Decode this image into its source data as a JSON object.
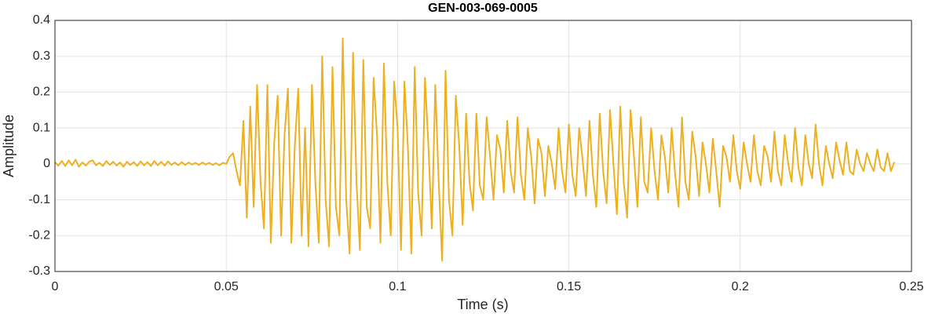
{
  "chart_data": {
    "type": "line",
    "title": "GEN-003-069-0005",
    "x_label": "Time (s)",
    "y_label": "Amplitude",
    "xlim": [
      0,
      0.25
    ],
    "xticks": [
      0,
      0.05,
      0.1,
      0.15,
      0.2,
      0.25
    ],
    "ylim": [
      -0.3,
      0.4
    ],
    "yticks": [
      -0.3,
      -0.2,
      -0.1,
      0,
      0.1,
      0.2,
      0.3,
      0.4
    ],
    "grid": true,
    "x": [
      0,
      0.001,
      0.002,
      0.003,
      0.004,
      0.005,
      0.006,
      0.007,
      0.008,
      0.009,
      0.01,
      0.011,
      0.012,
      0.013,
      0.014,
      0.015,
      0.016,
      0.017,
      0.018,
      0.019,
      0.02,
      0.021,
      0.022,
      0.023,
      0.024,
      0.025,
      0.026,
      0.027,
      0.028,
      0.029,
      0.03,
      0.031,
      0.032,
      0.033,
      0.034,
      0.035,
      0.036,
      0.037,
      0.038,
      0.039,
      0.04,
      0.041,
      0.042,
      0.043,
      0.044,
      0.045,
      0.046,
      0.047,
      0.048,
      0.049,
      0.05,
      0.051,
      0.052,
      0.053,
      0.054,
      0.055,
      0.056,
      0.057,
      0.058,
      0.059,
      0.06,
      0.061,
      0.062,
      0.063,
      0.064,
      0.065,
      0.066,
      0.067,
      0.068,
      0.069,
      0.07,
      0.071,
      0.072,
      0.073,
      0.074,
      0.075,
      0.076,
      0.077,
      0.078,
      0.079,
      0.08,
      0.081,
      0.082,
      0.083,
      0.084,
      0.085,
      0.086,
      0.087,
      0.088,
      0.089,
      0.09,
      0.091,
      0.092,
      0.093,
      0.094,
      0.095,
      0.096,
      0.097,
      0.098,
      0.099,
      0.1,
      0.101,
      0.102,
      0.103,
      0.104,
      0.105,
      0.106,
      0.107,
      0.108,
      0.109,
      0.11,
      0.111,
      0.112,
      0.113,
      0.114,
      0.115,
      0.116,
      0.117,
      0.118,
      0.119,
      0.12,
      0.121,
      0.122,
      0.123,
      0.124,
      0.125,
      0.126,
      0.127,
      0.128,
      0.129,
      0.13,
      0.131,
      0.132,
      0.133,
      0.134,
      0.135,
      0.136,
      0.137,
      0.138,
      0.139,
      0.14,
      0.141,
      0.142,
      0.143,
      0.144,
      0.145,
      0.146,
      0.147,
      0.148,
      0.149,
      0.15,
      0.151,
      0.152,
      0.153,
      0.154,
      0.155,
      0.156,
      0.157,
      0.158,
      0.159,
      0.16,
      0.161,
      0.162,
      0.163,
      0.164,
      0.165,
      0.166,
      0.167,
      0.168,
      0.169,
      0.17,
      0.171,
      0.172,
      0.173,
      0.174,
      0.175,
      0.176,
      0.177,
      0.178,
      0.179,
      0.18,
      0.181,
      0.182,
      0.183,
      0.184,
      0.185,
      0.186,
      0.187,
      0.188,
      0.189,
      0.19,
      0.191,
      0.192,
      0.193,
      0.194,
      0.195,
      0.196,
      0.197,
      0.198,
      0.199,
      0.2,
      0.201,
      0.202,
      0.203,
      0.204,
      0.205,
      0.206,
      0.207,
      0.208,
      0.209,
      0.21,
      0.211,
      0.212,
      0.213,
      0.214,
      0.215,
      0.216,
      0.217,
      0.218,
      0.219,
      0.22,
      0.221,
      0.222,
      0.223,
      0.224,
      0.225,
      0.226,
      0.227,
      0.228,
      0.229,
      0.23,
      0.231,
      0.232,
      0.233,
      0.234,
      0.235,
      0.236,
      0.237,
      0.238,
      0.239,
      0.24,
      0.241,
      0.242,
      0.243,
      0.244,
      0.245
    ],
    "series": [
      {
        "color": "#EDB120",
        "values": [
          0.005,
          -0.005,
          0.008,
          -0.006,
          0.01,
          -0.004,
          0.012,
          -0.008,
          0.004,
          -0.005,
          0.006,
          0.01,
          -0.004,
          0.003,
          -0.006,
          0.008,
          -0.003,
          0.006,
          -0.005,
          0.004,
          -0.008,
          0.006,
          -0.003,
          0.005,
          -0.006,
          0.007,
          -0.004,
          0.005,
          -0.006,
          0.008,
          -0.004,
          0.006,
          -0.005,
          0.007,
          -0.003,
          0.004,
          -0.004,
          0.005,
          -0.003,
          0.004,
          -0.002,
          0.003,
          -0.003,
          0.004,
          -0.002,
          0.003,
          -0.003,
          0.002,
          -0.004,
          0.003,
          0,
          0.02,
          0.03,
          -0.02,
          -0.06,
          0.12,
          -0.15,
          0.16,
          -0.12,
          0.22,
          -0.05,
          -0.18,
          0.22,
          -0.22,
          0.06,
          0.19,
          -0.2,
          0.08,
          0.21,
          -0.22,
          0.05,
          0.21,
          -0.2,
          0.1,
          -0.23,
          0.22,
          -0.05,
          -0.22,
          0.3,
          -0.1,
          -0.23,
          0.27,
          -0.12,
          -0.2,
          0.35,
          -0.1,
          -0.25,
          0.31,
          -0.05,
          -0.24,
          0.29,
          -0.12,
          -0.18,
          0.24,
          0.08,
          -0.22,
          0.28,
          -0.05,
          -0.2,
          0.23,
          0.1,
          -0.24,
          0.23,
          0.05,
          -0.25,
          0.27,
          -0.08,
          -0.2,
          0.24,
          0.05,
          -0.18,
          0.22,
          -0.05,
          -0.27,
          0.26,
          -0.1,
          -0.2,
          0.19,
          0.05,
          -0.17,
          0.14,
          -0.05,
          -0.13,
          0.14,
          -0.06,
          -0.1,
          0.13,
          0.02,
          -0.1,
          0.08,
          0.04,
          -0.08,
          0.12,
          -0.02,
          -0.08,
          0.13,
          -0.03,
          -0.1,
          0.1,
          0.02,
          -0.11,
          0.07,
          0.03,
          -0.09,
          0.05,
          0,
          -0.07,
          0.1,
          -0.02,
          -0.08,
          0.11,
          -0.03,
          -0.09,
          0.1,
          0.01,
          -0.09,
          0.12,
          -0.03,
          -0.12,
          0.14,
          -0.02,
          -0.11,
          0.15,
          0,
          -0.14,
          0.16,
          -0.05,
          -0.15,
          0.15,
          0.02,
          -0.12,
          0.13,
          -0.05,
          -0.08,
          0.1,
          -0.02,
          -0.1,
          0.08,
          0.02,
          -0.08,
          0.1,
          -0.03,
          -0.12,
          0.13,
          -0.05,
          -0.1,
          0.09,
          0.02,
          -0.09,
          0.06,
          0,
          -0.08,
          0.07,
          -0.02,
          -0.12,
          0.05,
          0.02,
          -0.05,
          0.08,
          -0.02,
          -0.07,
          0.06,
          0,
          -0.05,
          0.08,
          -0.02,
          -0.06,
          0.05,
          0.02,
          -0.05,
          0.09,
          -0.02,
          -0.06,
          0.08,
          0,
          -0.05,
          0.1,
          -0.01,
          -0.06,
          0.08,
          0,
          -0.04,
          0.11,
          0,
          -0.06,
          0.05,
          0,
          -0.04,
          0.06,
          0.01,
          -0.03,
          0.06,
          -0.02,
          -0.03,
          0.04,
          0,
          -0.02,
          0.03,
          0,
          -0.02,
          0.04,
          -0.01,
          -0.02,
          0.03,
          -0.02,
          0.005
        ]
      }
    ]
  }
}
